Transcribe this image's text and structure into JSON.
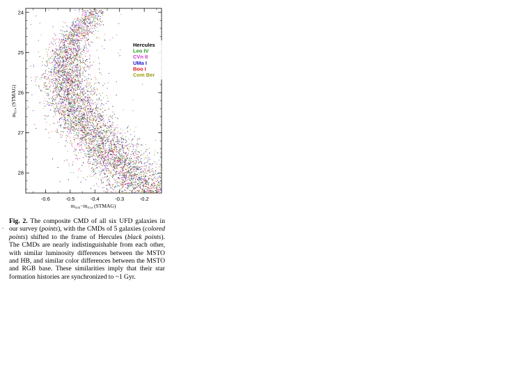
{
  "chart_data": {
    "type": "scatter",
    "xlabel": "m₆₀₆−m₈₁₄ (STMAG)",
    "ylabel": "m₈₁₄ (STMAG)",
    "xlim": [
      -0.68,
      -0.13
    ],
    "ylim": [
      28.5,
      23.9
    ],
    "x_ticks": [
      -0.6,
      -0.5,
      -0.4,
      -0.3,
      -0.2
    ],
    "y_ticks": [
      24,
      25,
      26,
      27,
      28
    ],
    "grid": false,
    "legend_position": "top-right",
    "ridge": {
      "mag": [
        24.0,
        24.5,
        25.0,
        25.5,
        26.0,
        26.5,
        27.0,
        27.5,
        28.0,
        28.5
      ],
      "color": [
        -0.41,
        -0.47,
        -0.51,
        -0.52,
        -0.5,
        -0.465,
        -0.41,
        -0.34,
        -0.26,
        -0.17
      ]
    },
    "series": [
      {
        "name": "Hercules",
        "color": "#000000"
      },
      {
        "name": "Leo IV",
        "color": "#1f9d1f"
      },
      {
        "name": "CVn II",
        "color": "#cc33cc"
      },
      {
        "name": "UMa I",
        "color": "#2020c8"
      },
      {
        "name": "Boo I",
        "color": "#dd1a1a"
      },
      {
        "name": "Com Ber",
        "color": "#9a9a10"
      }
    ]
  },
  "caption": {
    "label": "Fig. 2.",
    "parts": [
      {
        "t": " The composite CMD of all six UFD galaxies in our survey (",
        "i": false
      },
      {
        "t": "points",
        "i": true
      },
      {
        "t": "), with the CMDs of 5 galax­ies (",
        "i": false
      },
      {
        "t": "colored points",
        "i": true
      },
      {
        "t": ") shifted to the frame of Hercules (",
        "i": false
      },
      {
        "t": "black points",
        "i": true
      },
      {
        "t": "). The CMDs are nearly indistinguish­able from each other, with similar luminosity dif­ferences between the MSTO and HB, and similar color differences between the MSTO and RGB base. These similarities imply that their star formation histories are synchronized to ~1 Gyr.",
        "i": false
      }
    ]
  },
  "margin_mark": "."
}
